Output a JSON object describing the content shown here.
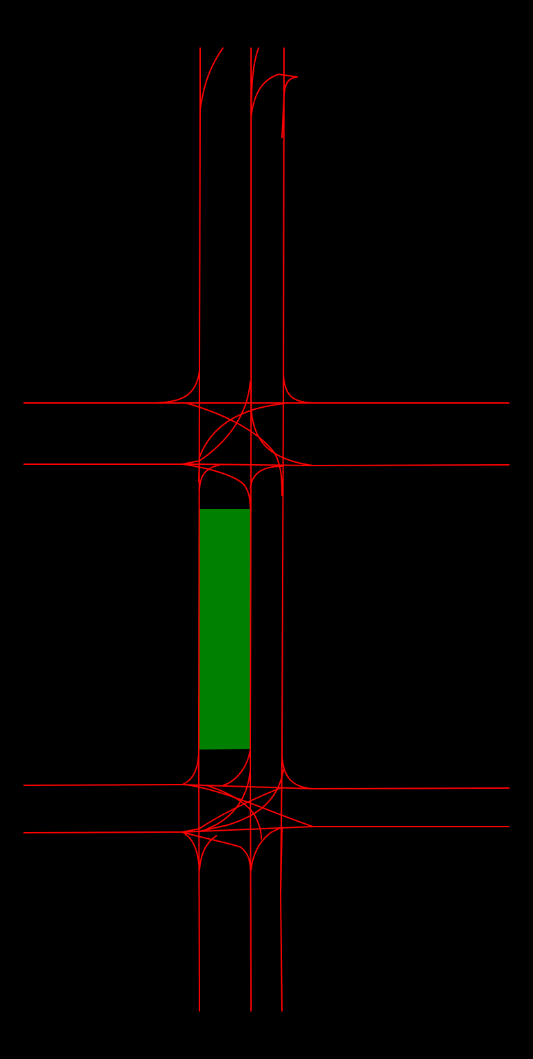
{
  "diagram": {
    "background_color": "#000000",
    "lane_color": "#ff0000",
    "region_color": "#008000"
  }
}
